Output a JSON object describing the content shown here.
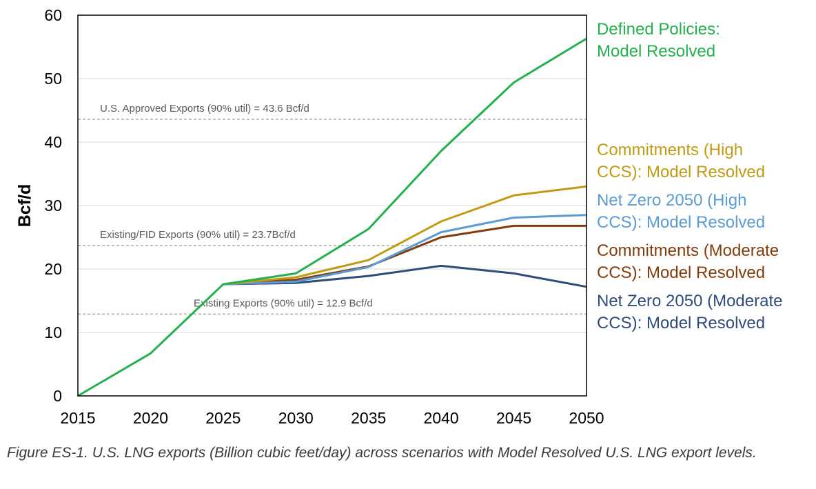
{
  "chart_data": {
    "type": "line",
    "x": [
      2015,
      2020,
      2025,
      2030,
      2035,
      2040,
      2045,
      2050
    ],
    "xlim": [
      2015,
      2050
    ],
    "ylim": [
      0,
      60
    ],
    "x_ticks": [
      "2015",
      "2020",
      "2025",
      "2030",
      "2035",
      "2040",
      "2045",
      "2050"
    ],
    "y_ticks": [
      "0",
      "10",
      "20",
      "30",
      "40",
      "50",
      "60"
    ],
    "ylabel": "Bcf/d",
    "grid": "horizontal",
    "legend_position": "right",
    "series": [
      {
        "name": "Defined Policies: Model Resolved",
        "label_lines": [
          "Defined Policies:",
          "Model Resolved"
        ],
        "color": "#22b14c",
        "x": [
          2015,
          2020,
          2025,
          2030,
          2035,
          2040,
          2045,
          2050
        ],
        "values": [
          0,
          6.7,
          17.6,
          19.3,
          26.3,
          38.6,
          49.4,
          56.3
        ]
      },
      {
        "name": "Commitments (High CCS): Model Resolved",
        "label_lines": [
          "Commitments (High",
          "CCS): Model Resolved"
        ],
        "color": "#c29b14",
        "x": [
          2025,
          2030,
          2035,
          2040,
          2045,
          2050
        ],
        "values": [
          17.6,
          18.7,
          21.4,
          27.5,
          31.6,
          33.0
        ]
      },
      {
        "name": "Net Zero 2050 (High CCS): Model Resolved",
        "label_lines": [
          "Net Zero 2050 (High",
          "CCS): Model Resolved"
        ],
        "color": "#5b9bd5",
        "x": [
          2025,
          2030,
          2035,
          2040,
          2045,
          2050
        ],
        "values": [
          17.6,
          18.0,
          20.3,
          25.8,
          28.1,
          28.5
        ]
      },
      {
        "name": "Commitments (Moderate CCS): Model Resolved",
        "label_lines": [
          "Commitments (Moderate",
          "CCS): Model Resolved"
        ],
        "color": "#843c0c",
        "x": [
          2025,
          2030,
          2035,
          2040,
          2045,
          2050
        ],
        "values": [
          17.6,
          18.3,
          20.4,
          25.0,
          26.8,
          26.8
        ]
      },
      {
        "name": "Net Zero 2050 (Moderate CCS): Model Resolved",
        "label_lines": [
          "Net Zero 2050 (Moderate",
          "CCS): Model Resolved"
        ],
        "color": "#2f4b7c",
        "x": [
          2025,
          2030,
          2035,
          2040,
          2045,
          2050
        ],
        "values": [
          17.6,
          17.8,
          18.9,
          20.5,
          19.3,
          17.2
        ]
      }
    ],
    "reference_lines": [
      {
        "value": 43.6,
        "label": "U.S. Approved Exports (90% util) = 43.6 Bcf/d",
        "color": "#a6a6a6"
      },
      {
        "value": 23.7,
        "label": "Existing/FID Exports (90% util) = 23.7Bcf/d",
        "color": "#a6a6a6"
      },
      {
        "value": 12.9,
        "label": "Existing Exports (90% util) = 12.9 Bcf/d",
        "color": "#a6a6a6"
      }
    ]
  },
  "caption": {
    "text": "Figure ES-1. U.S. LNG exports (Billion cubic feet/day) across scenarios with Model Resolved U.S. LNG export levels."
  }
}
